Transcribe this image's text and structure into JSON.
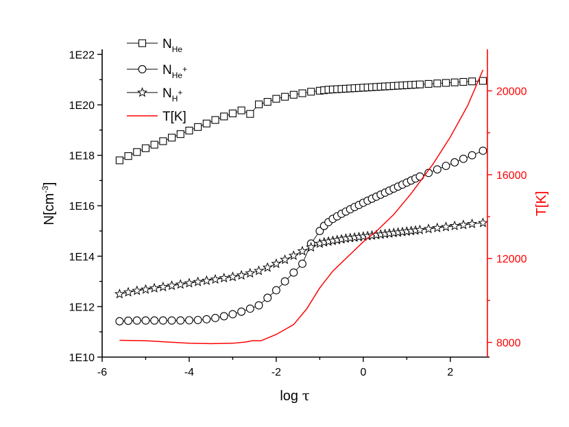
{
  "chart_data": {
    "type": "scatter",
    "xlabel_main": "log ",
    "xlabel_symbol": "τ",
    "xlim": [
      -6,
      2.9
    ],
    "x_ticks": [
      -6,
      -4,
      -2,
      0,
      2
    ],
    "x_tick_labels": [
      "-6",
      "-4",
      "-2",
      "0",
      "2"
    ],
    "left_axis": {
      "label_main": "N[cm",
      "label_sup": "-3",
      "label_close": "]",
      "scale": "log",
      "lim_exp": [
        10,
        22.2
      ],
      "tick_exps": [
        10,
        12,
        14,
        16,
        18,
        20,
        22
      ],
      "tick_labels": [
        "1E10",
        "1E12",
        "1E14",
        "1E16",
        "1E18",
        "1E20",
        "1E22"
      ]
    },
    "right_axis": {
      "label": "T[K]",
      "scale": "linear",
      "color": "#ff0000",
      "lim": [
        7300,
        21980
      ],
      "ticks": [
        8000,
        12000,
        16000,
        20000
      ],
      "tick_labels": [
        "8000",
        "12000",
        "16000",
        "20000"
      ]
    },
    "legend": {
      "placement": "top-left",
      "entries": [
        {
          "main": "N",
          "sub": "He",
          "sup": "",
          "marker": "square"
        },
        {
          "main": "N",
          "sub": "He",
          "sup": "+",
          "marker": "circle"
        },
        {
          "main": "N",
          "sub": "H",
          "sup": "+",
          "marker": "star"
        },
        {
          "main": "T[K]",
          "sub": "",
          "sup": "",
          "marker": "line"
        }
      ]
    },
    "series": [
      {
        "marker": "square",
        "axis": "left",
        "x": [
          -5.6,
          -5.4,
          -5.2,
          -5.0,
          -4.8,
          -4.6,
          -4.4,
          -4.2,
          -4.0,
          -3.8,
          -3.6,
          -3.4,
          -3.2,
          -3.0,
          -2.8,
          -2.6,
          -2.4,
          -2.2,
          -2.0,
          -1.8,
          -1.6,
          -1.4,
          -1.2,
          -1.0,
          -0.9,
          -0.8,
          -0.7,
          -0.6,
          -0.5,
          -0.4,
          -0.3,
          -0.2,
          -0.1,
          0.0,
          0.1,
          0.2,
          0.3,
          0.4,
          0.5,
          0.6,
          0.7,
          0.8,
          0.9,
          1.0,
          1.1,
          1.2,
          1.3,
          1.5,
          1.7,
          1.9,
          2.1,
          2.3,
          2.5,
          2.75
        ],
        "log_y": [
          17.8,
          17.97,
          18.13,
          18.28,
          18.42,
          18.56,
          18.7,
          18.84,
          18.98,
          19.12,
          19.26,
          19.4,
          19.54,
          19.66,
          19.78,
          19.64,
          20.02,
          20.12,
          20.24,
          20.32,
          20.4,
          20.46,
          20.52,
          20.56,
          20.58,
          20.6,
          20.61,
          20.62,
          20.63,
          20.64,
          20.65,
          20.66,
          20.67,
          20.68,
          20.69,
          20.7,
          20.71,
          20.72,
          20.73,
          20.74,
          20.75,
          20.76,
          20.77,
          20.78,
          20.79,
          20.8,
          20.81,
          20.83,
          20.85,
          20.87,
          20.89,
          20.91,
          20.93,
          20.95
        ]
      },
      {
        "marker": "circle",
        "axis": "left",
        "x": [
          -5.6,
          -5.4,
          -5.2,
          -5.0,
          -4.8,
          -4.6,
          -4.4,
          -4.2,
          -4.0,
          -3.8,
          -3.6,
          -3.4,
          -3.2,
          -3.0,
          -2.8,
          -2.6,
          -2.4,
          -2.2,
          -2.0,
          -1.8,
          -1.6,
          -1.4,
          -1.2,
          -1.0,
          -0.9,
          -0.8,
          -0.7,
          -0.6,
          -0.5,
          -0.4,
          -0.3,
          -0.2,
          -0.1,
          0.0,
          0.1,
          0.2,
          0.3,
          0.4,
          0.5,
          0.6,
          0.7,
          0.8,
          0.9,
          1.0,
          1.1,
          1.2,
          1.3,
          1.5,
          1.7,
          1.9,
          2.1,
          2.3,
          2.5,
          2.75
        ],
        "log_y": [
          11.42,
          11.44,
          11.45,
          11.45,
          11.45,
          11.45,
          11.45,
          11.45,
          11.46,
          11.47,
          11.5,
          11.55,
          11.62,
          11.7,
          11.8,
          11.92,
          12.05,
          12.35,
          12.65,
          13.0,
          13.35,
          13.7,
          14.5,
          15.0,
          15.2,
          15.35,
          15.48,
          15.58,
          15.68,
          15.77,
          15.86,
          15.95,
          16.03,
          16.12,
          16.2,
          16.28,
          16.36,
          16.44,
          16.52,
          16.6,
          16.68,
          16.76,
          16.84,
          16.92,
          17.0,
          17.08,
          17.16,
          17.3,
          17.44,
          17.58,
          17.72,
          17.86,
          18.0,
          18.18
        ]
      },
      {
        "marker": "star",
        "axis": "left",
        "x": [
          -5.6,
          -5.4,
          -5.2,
          -5.0,
          -4.8,
          -4.6,
          -4.4,
          -4.2,
          -4.0,
          -3.8,
          -3.6,
          -3.4,
          -3.2,
          -3.0,
          -2.8,
          -2.6,
          -2.4,
          -2.2,
          -2.0,
          -1.8,
          -1.6,
          -1.4,
          -1.2,
          -1.0,
          -0.9,
          -0.8,
          -0.7,
          -0.6,
          -0.5,
          -0.4,
          -0.3,
          -0.2,
          -0.1,
          0.0,
          0.1,
          0.2,
          0.3,
          0.4,
          0.5,
          0.6,
          0.7,
          0.8,
          0.9,
          1.0,
          1.1,
          1.2,
          1.3,
          1.5,
          1.7,
          1.9,
          2.1,
          2.3,
          2.5,
          2.75
        ],
        "log_y": [
          12.5,
          12.57,
          12.63,
          12.68,
          12.73,
          12.78,
          12.83,
          12.88,
          12.93,
          12.98,
          13.03,
          13.08,
          13.13,
          13.18,
          13.24,
          13.32,
          13.42,
          13.55,
          13.7,
          13.86,
          14.02,
          14.2,
          14.35,
          14.5,
          14.55,
          14.58,
          14.61,
          14.64,
          14.67,
          14.7,
          14.72,
          14.74,
          14.76,
          14.78,
          14.8,
          14.82,
          14.84,
          14.86,
          14.88,
          14.9,
          14.92,
          14.94,
          14.96,
          14.98,
          15.0,
          15.02,
          15.04,
          15.08,
          15.12,
          15.16,
          15.2,
          15.24,
          15.28,
          15.32
        ]
      },
      {
        "marker": "line",
        "axis": "right",
        "color": "#ff0000",
        "x": [
          -5.6,
          -5.0,
          -4.5,
          -4.0,
          -3.5,
          -3.0,
          -2.7,
          -2.55,
          -2.35,
          -2.0,
          -1.6,
          -1.3,
          -1.0,
          -0.7,
          -0.4,
          0.0,
          0.3,
          0.7,
          1.1,
          1.6,
          2.0,
          2.4,
          2.75
        ],
        "y": [
          8100,
          8080,
          8020,
          7960,
          7940,
          7960,
          8020,
          8080,
          8080,
          8380,
          8850,
          9600,
          10600,
          11400,
          12000,
          12800,
          13300,
          14100,
          15100,
          16500,
          17800,
          19300,
          21000
        ]
      }
    ]
  }
}
